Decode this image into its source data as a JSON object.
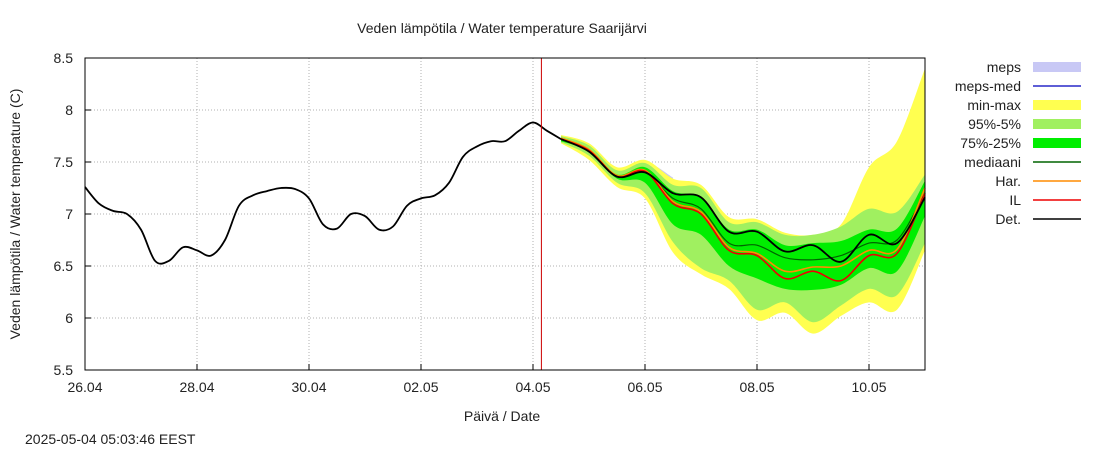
{
  "chart_data": {
    "type": "line",
    "title": "Veden lämpötila / Water temperature Saarijärvi",
    "xlabel": "Päivä / Date",
    "ylabel": "Veden lämpötila / Water temperature (C)",
    "timestamp": "2025-05-04 05:03:46 EEST",
    "xlim": [
      0,
      15
    ],
    "ylim": [
      5.5,
      8.5
    ],
    "x_ticks": [
      {
        "x": 0,
        "label": "26.04"
      },
      {
        "x": 2,
        "label": "28.04"
      },
      {
        "x": 4,
        "label": "30.04"
      },
      {
        "x": 6,
        "label": "02.05"
      },
      {
        "x": 8,
        "label": "04.05"
      },
      {
        "x": 10,
        "label": "06.05"
      },
      {
        "x": 12,
        "label": "08.05"
      },
      {
        "x": 14,
        "label": "10.05"
      }
    ],
    "y_ticks": [
      {
        "y": 5.5,
        "label": "5.5"
      },
      {
        "y": 6,
        "label": "6"
      },
      {
        "y": 6.5,
        "label": "6.5"
      },
      {
        "y": 7,
        "label": "7"
      },
      {
        "y": 7.5,
        "label": "7.5"
      },
      {
        "y": 8,
        "label": "8"
      },
      {
        "y": 8.5,
        "label": "8.5"
      }
    ],
    "grid": true,
    "legend_position": "right",
    "forecast_marker_x": 8.15,
    "colors": {
      "meps": "#c8c8f5",
      "meps_med": "#2828c8",
      "minmax": "#ffff50",
      "p95_5": "#a0f060",
      "p75_25": "#00ee00",
      "median": "#006400",
      "har": "#ff8c00",
      "il": "#ee0000",
      "det": "#000000",
      "marker": "#cc0000",
      "grid": "#b0b0b0"
    },
    "legend": [
      {
        "key": "meps",
        "label": "meps",
        "kind": "band"
      },
      {
        "key": "meps_med",
        "label": "meps-med",
        "kind": "line"
      },
      {
        "key": "minmax",
        "label": "min-max",
        "kind": "band"
      },
      {
        "key": "p95_5",
        "label": "95%-5%",
        "kind": "band"
      },
      {
        "key": "p75_25",
        "label": "75%-25%",
        "kind": "band"
      },
      {
        "key": "median",
        "label": "mediaani",
        "kind": "line"
      },
      {
        "key": "har",
        "label": "Har.",
        "kind": "line"
      },
      {
        "key": "il",
        "label": "IL",
        "kind": "line"
      },
      {
        "key": "det",
        "label": "Det.",
        "kind": "line"
      }
    ],
    "observed": {
      "x": [
        0,
        0.25,
        0.5,
        0.75,
        1.0,
        1.25,
        1.5,
        1.75,
        2.0,
        2.25,
        2.5,
        2.75,
        3.0,
        3.25,
        3.5,
        3.75,
        4.0,
        4.25,
        4.5,
        4.75,
        5.0,
        5.25,
        5.5,
        5.75,
        6.0,
        6.25,
        6.5,
        6.75,
        7.0,
        7.25,
        7.5,
        7.75,
        8.0,
        8.25,
        8.5
      ],
      "y": [
        7.26,
        7.1,
        7.03,
        7.0,
        6.85,
        6.55,
        6.55,
        6.68,
        6.65,
        6.6,
        6.75,
        7.08,
        7.18,
        7.22,
        7.25,
        7.24,
        7.15,
        6.9,
        6.86,
        7.0,
        6.98,
        6.85,
        6.88,
        7.08,
        7.15,
        7.18,
        7.3,
        7.55,
        7.65,
        7.7,
        7.7,
        7.8,
        7.88,
        7.8,
        7.72
      ]
    },
    "forecast_x": [
      8.5,
      9.0,
      9.5,
      10.0,
      10.5,
      11.0,
      11.5,
      12.0,
      12.5,
      13.0,
      13.5,
      14.0,
      14.5,
      15.0
    ],
    "bands": {
      "minmax_hi": [
        7.76,
        7.68,
        7.45,
        7.52,
        7.34,
        7.28,
        6.97,
        6.95,
        6.82,
        6.8,
        6.9,
        7.45,
        7.7,
        8.4
      ],
      "minmax_lo": [
        7.68,
        7.52,
        7.26,
        7.15,
        6.63,
        6.42,
        6.28,
        5.98,
        6.05,
        5.85,
        6.02,
        6.15,
        6.08,
        6.65
      ],
      "p95_hi": [
        7.75,
        7.66,
        7.42,
        7.49,
        7.28,
        7.25,
        6.92,
        6.92,
        6.8,
        6.8,
        6.88,
        7.05,
        7.02,
        7.38
      ],
      "p95_lo": [
        7.69,
        7.56,
        7.3,
        7.2,
        6.73,
        6.48,
        6.36,
        6.08,
        6.15,
        5.96,
        6.12,
        6.28,
        6.22,
        6.72
      ],
      "p75_hi": [
        7.73,
        7.62,
        7.38,
        7.45,
        7.22,
        7.16,
        6.85,
        6.85,
        6.7,
        6.72,
        6.74,
        6.85,
        6.86,
        7.32
      ],
      "p75_lo": [
        7.7,
        7.6,
        7.34,
        7.3,
        6.9,
        6.8,
        6.5,
        6.38,
        6.28,
        6.27,
        6.32,
        6.48,
        6.45,
        6.98
      ],
      "meps_hi": [
        7.73,
        7.62,
        7.4,
        7.5,
        7.35
      ]
    },
    "series": [
      {
        "key": "median",
        "values": [
          7.72,
          7.61,
          7.36,
          7.4,
          7.15,
          7.05,
          6.72,
          6.7,
          6.58,
          6.56,
          6.6,
          6.72,
          6.75,
          7.2
        ]
      },
      {
        "key": "har",
        "values": [
          7.73,
          7.62,
          7.37,
          7.42,
          7.12,
          7.02,
          6.68,
          6.62,
          6.45,
          6.49,
          6.5,
          6.65,
          6.66,
          7.25
        ]
      },
      {
        "key": "il",
        "values": [
          7.72,
          7.61,
          7.36,
          7.41,
          7.1,
          7.0,
          6.65,
          6.6,
          6.38,
          6.45,
          6.36,
          6.6,
          6.62,
          7.2
        ]
      },
      {
        "key": "det",
        "values": [
          7.72,
          7.6,
          7.36,
          7.4,
          7.2,
          7.16,
          6.83,
          6.83,
          6.64,
          6.7,
          6.54,
          6.8,
          6.72,
          7.16
        ]
      }
    ]
  }
}
